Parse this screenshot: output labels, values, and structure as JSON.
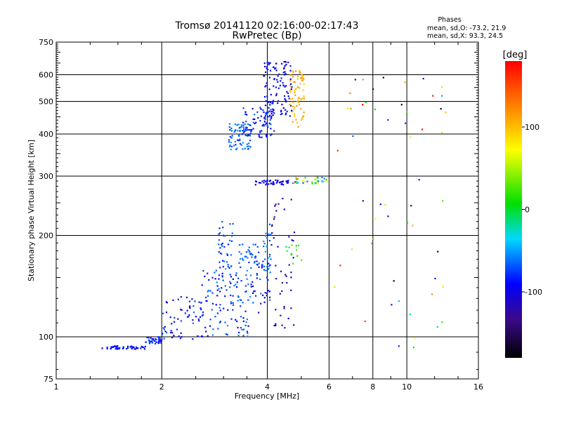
{
  "chart_data": {
    "type": "scatter",
    "title": "Tromsø 20141120 02:16:00-02:17:43",
    "subtitle": "RwPretec (Bp)",
    "xlabel": "Frequency [MHz]",
    "ylabel": "Stationary phase Virtual Height [km]",
    "x_scale": "log",
    "y_scale": "log",
    "xlim": [
      1,
      16
    ],
    "ylim": [
      75,
      750
    ],
    "x_ticks": [
      1,
      2,
      4,
      6,
      8,
      10,
      16
    ],
    "x_tick_labels": [
      "1",
      "2",
      "4",
      "6",
      "8",
      "10",
      "16"
    ],
    "y_ticks": [
      75,
      100,
      200,
      300,
      400,
      500,
      600,
      750
    ],
    "y_tick_labels": [
      "75",
      "100",
      "200",
      "300",
      "400",
      "500",
      "600",
      "750"
    ],
    "grid": true,
    "info": {
      "heading": "Phases",
      "line_o": "mean, sd,O: -73.2, 21.9",
      "line_x": "mean, sd,X:  93.3, 24.5"
    },
    "colorbar": {
      "label": "[deg]",
      "range": [
        -180,
        180
      ],
      "ticks": [
        100,
        0,
        -100
      ],
      "tick_labels": [
        "100",
        "0",
        "-100"
      ]
    },
    "clusters": [
      {
        "x": [
          1.8,
          2.0
        ],
        "y": [
          95,
          100
        ],
        "phase": [
          -110,
          -60
        ],
        "n": 40
      },
      {
        "x": [
          1.35,
          1.8
        ],
        "y": [
          92,
          94
        ],
        "phase": [
          -100,
          -80
        ],
        "n": 45
      },
      {
        "x": [
          2.0,
          2.6
        ],
        "y": [
          98,
          135
        ],
        "phase": [
          -120,
          -60
        ],
        "n": 60
      },
      {
        "x": [
          2.6,
          3.6
        ],
        "y": [
          100,
          160
        ],
        "phase": [
          -100,
          -50
        ],
        "n": 120
      },
      {
        "x": [
          2.9,
          3.2
        ],
        "y": [
          150,
          220
        ],
        "phase": [
          -90,
          -60
        ],
        "n": 40
      },
      {
        "x": [
          3.3,
          3.8
        ],
        "y": [
          160,
          190
        ],
        "phase": [
          -80,
          -55
        ],
        "n": 35
      },
      {
        "x": [
          3.6,
          4.1
        ],
        "y": [
          115,
          170
        ],
        "phase": [
          -110,
          -60
        ],
        "n": 40
      },
      {
        "x": [
          3.9,
          4.1
        ],
        "y": [
          155,
          220
        ],
        "phase": [
          -75,
          -50
        ],
        "n": 25
      },
      {
        "x": [
          4.1,
          4.8
        ],
        "y": [
          105,
          260
        ],
        "phase": [
          -140,
          -90
        ],
        "n": 45
      },
      {
        "x": [
          4.5,
          5.0
        ],
        "y": [
          165,
          190
        ],
        "phase": [
          -10,
          40
        ],
        "n": 12
      },
      {
        "x": [
          3.7,
          4.8
        ],
        "y": [
          283,
          292
        ],
        "phase": [
          -110,
          -90
        ],
        "n": 45
      },
      {
        "x": [
          4.7,
          5.9
        ],
        "y": [
          285,
          298
        ],
        "phase": [
          -70,
          110
        ],
        "n": 35
      },
      {
        "x": [
          3.1,
          3.6
        ],
        "y": [
          360,
          430
        ],
        "phase": [
          -80,
          -50
        ],
        "n": 70
      },
      {
        "x": [
          3.4,
          4.2
        ],
        "y": [
          390,
          480
        ],
        "phase": [
          -110,
          -60
        ],
        "n": 80
      },
      {
        "x": [
          3.9,
          4.7
        ],
        "y": [
          450,
          660
        ],
        "phase": [
          -110,
          -80
        ],
        "n": 110
      },
      {
        "x": [
          4.6,
          5.1
        ],
        "y": [
          420,
          620
        ],
        "phase": [
          90,
          125
        ],
        "n": 70
      },
      {
        "x": [
          6.2,
          13.0
        ],
        "y": [
          90,
          620
        ],
        "phase": [
          -180,
          180
        ],
        "n": 55
      }
    ]
  }
}
